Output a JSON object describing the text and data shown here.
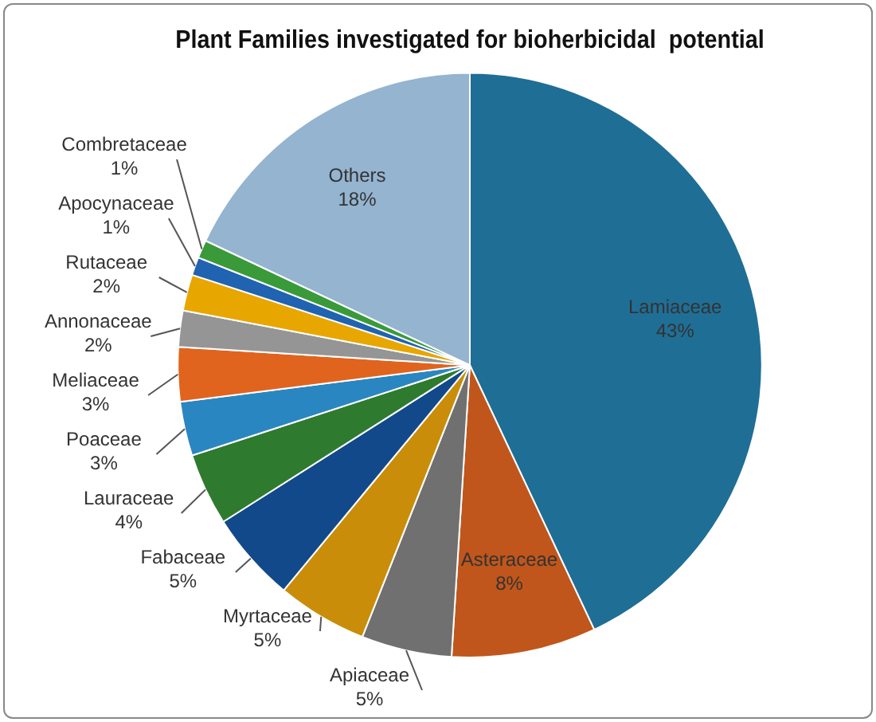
{
  "chart_data": {
    "type": "pie",
    "title": "Plant Families investigated for bioherbicidal  potential",
    "categories": [
      "Lamiaceae",
      "Asteraceae",
      "Apiaceae",
      "Myrtaceae",
      "Fabaceae",
      "Lauraceae",
      "Poaceae",
      "Meliaceae",
      "Annonaceae",
      "Rutaceae",
      "Apocynaceae",
      "Combretaceae",
      "Others"
    ],
    "values": [
      43,
      8,
      5,
      5,
      5,
      4,
      3,
      3,
      2,
      2,
      1,
      1,
      18
    ],
    "value_labels": [
      "43%",
      "8%",
      "5%",
      "5%",
      "5%",
      "4%",
      "3%",
      "3%",
      "2%",
      "2%",
      "1%",
      "1%",
      "18%"
    ],
    "colors": [
      "#1f6e96",
      "#c0561b",
      "#707070",
      "#c98d0a",
      "#12498a",
      "#2e7a2e",
      "#2a86c0",
      "#e0641e",
      "#959595",
      "#e8a600",
      "#2063b0",
      "#3a9a3a",
      "#94b4d0"
    ],
    "legend": false
  }
}
